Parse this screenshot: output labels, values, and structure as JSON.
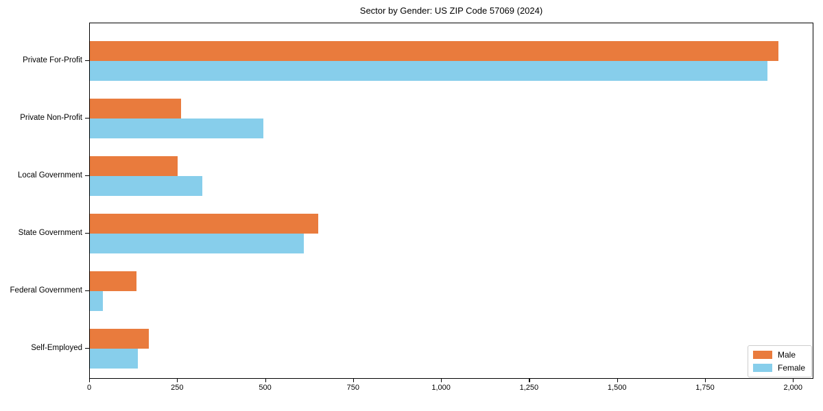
{
  "title": "Sector by Gender: US ZIP Code 57069 (2024)",
  "chart_data": {
    "type": "bar",
    "orientation": "horizontal",
    "title": "Sector by Gender: US ZIP Code 57069 (2024)",
    "categories": [
      "Private For-Profit",
      "Private Non-Profit",
      "Local Government",
      "State Government",
      "Federal Government",
      "Self-Employed"
    ],
    "series": [
      {
        "name": "Male",
        "color": "#E97B3D",
        "values": [
          1960,
          260,
          250,
          650,
          133,
          168
        ]
      },
      {
        "name": "Female",
        "color": "#87CEEB",
        "values": [
          1930,
          494,
          320,
          610,
          38,
          136
        ]
      }
    ],
    "xlabel": "",
    "ylabel": "",
    "xlim": [
      0,
      2058
    ],
    "xticks": [
      0,
      250,
      500,
      750,
      1000,
      1250,
      1500,
      1750,
      2000
    ],
    "xtick_labels": [
      "0",
      "250",
      "500",
      "750",
      "1,000",
      "1,250",
      "1,500",
      "1,750",
      "2,000"
    ],
    "legend_position": "lower right",
    "grid": false,
    "background_color": "#ffffff",
    "spine_color": "#000000"
  }
}
